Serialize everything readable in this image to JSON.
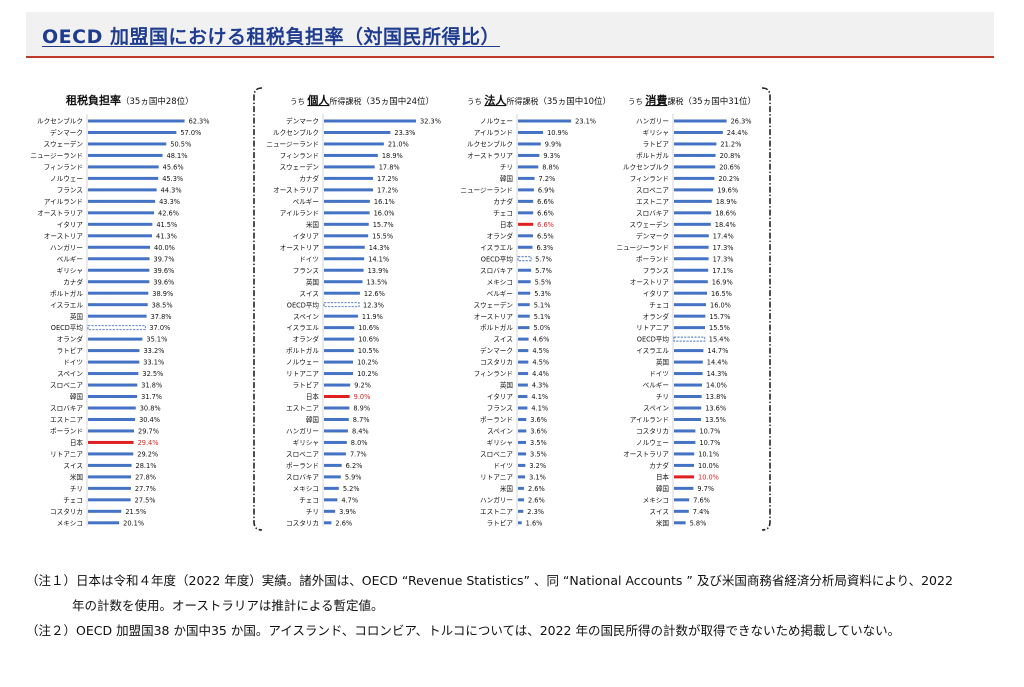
{
  "page": {
    "title": "OECD 加盟国における租税負担率（対国民所得比）"
  },
  "colors": {
    "bar": "#4472c4",
    "japan_bar": "#e02020",
    "japan_label": "#e02020",
    "oecd_avg_border": "#4472c4",
    "header_rule": "#c0392b",
    "title": "#1f3c8f"
  },
  "chart_data": [
    {
      "type": "bar",
      "orientation": "horizontal",
      "title_main": "租税負担率",
      "title_prefix": "",
      "title_suffix": "",
      "rank": "（35ヵ国中28位）",
      "xlim": [
        0,
        70
      ],
      "highlight": "日本",
      "average_category": "OECD平均",
      "categories": [
        "ルクセンブルク",
        "デンマーク",
        "スウェーデン",
        "ニュージーランド",
        "フィンランド",
        "ノルウェー",
        "フランス",
        "アイルランド",
        "オーストラリア",
        "イタリア",
        "オーストリア",
        "ハンガリー",
        "ベルギー",
        "ギリシャ",
        "カナダ",
        "ポルトガル",
        "イスラエル",
        "英国",
        "OECD平均",
        "オランダ",
        "ラトビア",
        "ドイツ",
        "スペイン",
        "スロベニア",
        "韓国",
        "スロバキア",
        "エストニア",
        "ポーランド",
        "日本",
        "リトアニア",
        "スイス",
        "米国",
        "チリ",
        "チェコ",
        "コスタリカ",
        "メキシコ"
      ],
      "values": [
        62.3,
        57.0,
        50.5,
        48.1,
        45.6,
        45.3,
        44.3,
        43.3,
        42.6,
        41.5,
        41.3,
        40.0,
        39.7,
        39.6,
        39.6,
        38.9,
        38.5,
        37.8,
        37.0,
        35.1,
        33.2,
        33.1,
        32.5,
        31.8,
        31.7,
        30.8,
        30.4,
        29.7,
        29.4,
        29.2,
        28.1,
        27.8,
        27.7,
        27.5,
        21.5,
        20.1
      ],
      "labels": [
        "62.3%",
        "57.0%",
        "50.5%",
        "48.1%",
        "45.6%",
        "45.3%",
        "44.3%",
        "43.3%",
        "42.6%",
        "41.5%",
        "41.3%",
        "40.0%",
        "39.7%",
        "39.6%",
        "39.6%",
        "38.9%",
        "38.5%",
        "37.8%",
        "37.0%",
        "35.1%",
        "33.2%",
        "33.1%",
        "32.5%",
        "31.8%",
        "31.7%",
        "30.8%",
        "30.4%",
        "29.7%",
        "29.4%",
        "29.2%",
        "28.1%",
        "27.8%",
        "27.7%",
        "27.5%",
        "21.5%",
        "20.1%"
      ]
    },
    {
      "type": "bar",
      "orientation": "horizontal",
      "title_main": "個人",
      "title_prefix": "うち",
      "title_suffix": "所得課税",
      "rank": "（35ヵ国中24位）",
      "xlim": [
        0,
        35
      ],
      "highlight": "日本",
      "average_category": "OECD平均",
      "categories": [
        "デンマーク",
        "ルクセンブルク",
        "ニュージーランド",
        "フィンランド",
        "スウェーデン",
        "カナダ",
        "オーストラリア",
        "ベルギー",
        "アイルランド",
        "米国",
        "イタリア",
        "オーストリア",
        "ドイツ",
        "フランス",
        "英国",
        "スイス",
        "OECD平均",
        "スペイン",
        "イスラエル",
        "オランダ",
        "ポルトガル",
        "ノルウェー",
        "リトアニア",
        "ラトビア",
        "日本",
        "エストニア",
        "韓国",
        "ハンガリー",
        "ギリシャ",
        "スロベニア",
        "ポーランド",
        "スロバキア",
        "メキシコ",
        "チェコ",
        "チリ",
        "コスタリカ"
      ],
      "values": [
        32.3,
        23.3,
        21.0,
        18.9,
        17.8,
        17.2,
        17.2,
        16.1,
        16.0,
        15.7,
        15.5,
        14.3,
        14.1,
        13.9,
        13.5,
        12.6,
        12.3,
        11.9,
        10.6,
        10.6,
        10.5,
        10.2,
        10.2,
        9.2,
        9.0,
        8.9,
        8.7,
        8.4,
        8.0,
        7.7,
        6.2,
        5.9,
        5.2,
        4.7,
        3.9,
        2.6
      ],
      "labels": [
        "32.3%",
        "23.3%",
        "21.0%",
        "18.9%",
        "17.8%",
        "17.2%",
        "17.2%",
        "16.1%",
        "16.0%",
        "15.7%",
        "15.5%",
        "14.3%",
        "14.1%",
        "13.9%",
        "13.5%",
        "12.6%",
        "12.3%",
        "11.9%",
        "10.6%",
        "10.6%",
        "10.5%",
        "10.2%",
        "10.2%",
        "9.2%",
        "9.0%",
        "8.9%",
        "8.7%",
        "8.4%",
        "8.0%",
        "7.7%",
        "6.2%",
        "5.9%",
        "5.2%",
        "4.7%",
        "3.9%",
        "2.6%"
      ]
    },
    {
      "type": "bar",
      "orientation": "horizontal",
      "title_main": "法人",
      "title_prefix": "うち",
      "title_suffix": "所得課税",
      "rank": "（35ヵ国中10位）",
      "xlim": [
        0,
        25
      ],
      "highlight": "日本",
      "average_category": "OECD平均",
      "categories": [
        "ノルウェー",
        "アイルランド",
        "ルクセンブルク",
        "オーストラリア",
        "チリ",
        "韓国",
        "ニュージーランド",
        "カナダ",
        "チェコ",
        "日本",
        "オランダ",
        "イスラエル",
        "OECD平均",
        "スロバキア",
        "メキシコ",
        "ベルギー",
        "スウェーデン",
        "オーストリア",
        "ポルトガル",
        "スイス",
        "デンマーク",
        "コスタリカ",
        "フィンランド",
        "英国",
        "イタリア",
        "フランス",
        "ポーランド",
        "スペイン",
        "ギリシャ",
        "スロベニア",
        "ドイツ",
        "リトアニア",
        "米国",
        "ハンガリー",
        "エストニア",
        "ラトビア"
      ],
      "values": [
        23.1,
        10.9,
        9.9,
        9.3,
        8.8,
        7.2,
        6.9,
        6.6,
        6.6,
        6.6,
        6.5,
        6.3,
        5.7,
        5.7,
        5.5,
        5.3,
        5.1,
        5.1,
        5.0,
        4.6,
        4.5,
        4.5,
        4.4,
        4.3,
        4.1,
        4.1,
        3.6,
        3.6,
        3.5,
        3.5,
        3.2,
        3.1,
        2.6,
        2.6,
        2.3,
        1.6
      ],
      "labels": [
        "23.1%",
        "10.9%",
        "9.9%",
        "9.3%",
        "8.8%",
        "7.2%",
        "6.9%",
        "6.6%",
        "6.6%",
        "6.6%",
        "6.5%",
        "6.3%",
        "5.7%",
        "5.7%",
        "5.5%",
        "5.3%",
        "5.1%",
        "5.1%",
        "5.0%",
        "4.6%",
        "4.5%",
        "4.5%",
        "4.4%",
        "4.3%",
        "4.1%",
        "4.1%",
        "3.6%",
        "3.6%",
        "3.5%",
        "3.5%",
        "3.2%",
        "3.1%",
        "2.6%",
        "2.6%",
        "2.3%",
        "1.6%"
      ]
    },
    {
      "type": "bar",
      "orientation": "horizontal",
      "title_main": "消費",
      "title_prefix": "うち",
      "title_suffix": "課税",
      "rank": "（35ヵ国中31位）",
      "xlim": [
        0,
        30
      ],
      "highlight": "日本",
      "average_category": "OECD平均",
      "categories": [
        "ハンガリー",
        "ギリシャ",
        "ラトビア",
        "ポルトガル",
        "ルクセンブルク",
        "フィンランド",
        "スロベニア",
        "エストニア",
        "スロバキア",
        "スウェーデン",
        "デンマーク",
        "ニュージーランド",
        "ポーランド",
        "フランス",
        "オーストリア",
        "イタリア",
        "チェコ",
        "オランダ",
        "リトアニア",
        "OECD平均",
        "イスラエル",
        "英国",
        "ドイツ",
        "ベルギー",
        "チリ",
        "スペイン",
        "アイルランド",
        "コスタリカ",
        "ノルウェー",
        "オーストラリア",
        "カナダ",
        "日本",
        "韓国",
        "メキシコ",
        "スイス",
        "米国"
      ],
      "values": [
        26.3,
        24.4,
        21.2,
        20.8,
        20.6,
        20.2,
        19.6,
        18.9,
        18.6,
        18.4,
        17.4,
        17.3,
        17.3,
        17.1,
        16.9,
        16.5,
        16.0,
        15.7,
        15.5,
        15.4,
        14.7,
        14.4,
        14.3,
        14.0,
        13.8,
        13.6,
        13.5,
        10.7,
        10.7,
        10.1,
        10.0,
        10.0,
        9.7,
        7.6,
        7.4,
        5.8
      ],
      "labels": [
        "26.3%",
        "24.4%",
        "21.2%",
        "20.8%",
        "20.6%",
        "20.2%",
        "19.6%",
        "18.9%",
        "18.6%",
        "18.4%",
        "17.4%",
        "17.3%",
        "17.3%",
        "17.1%",
        "16.9%",
        "16.5%",
        "16.0%",
        "15.7%",
        "15.5%",
        "15.4%",
        "14.7%",
        "14.4%",
        "14.3%",
        "14.0%",
        "13.8%",
        "13.6%",
        "13.5%",
        "10.7%",
        "10.7%",
        "10.1%",
        "10.0%",
        "10.0%",
        "9.7%",
        "7.6%",
        "7.4%",
        "5.8%"
      ]
    }
  ],
  "notes": {
    "note1_line1": "（注１）日本は令和４年度（2022 年度）実績。諸外国は、OECD “Revenue Statistics” 、同 “National Accounts ” 及び米国商務省経済分析局資料により、2022",
    "note1_line2": "年の計数を使用。オーストラリアは推計による暫定値。",
    "note2": "（注２）OECD 加盟国38 か国中35 か国。アイスランド、コロンビア、トルコについては、2022 年の国民所得の計数が取得できないため掲載していない。"
  }
}
